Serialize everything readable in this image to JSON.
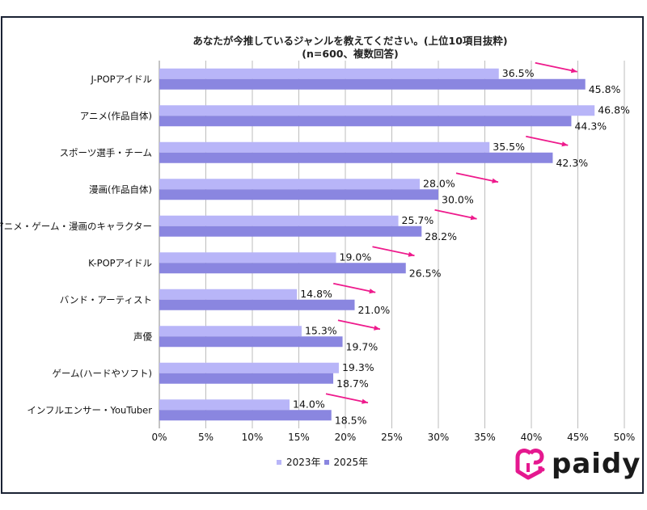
{
  "chart_data": {
    "type": "bar",
    "orientation": "horizontal",
    "title": "あなたが今推しているジャンルを教えてください。(上位10項目抜粋)",
    "subtitle": "(n=600、複数回答)",
    "categories": [
      "J-POPアイドル",
      "アニメ(作品自体)",
      "スポーツ選手・チーム",
      "漫画(作品自体)",
      "アニメ・ゲーム・漫画のキャラクター",
      "K-POPアイドル",
      "バンド・アーティスト",
      "声優",
      "ゲーム(ハードやソフト)",
      "インフルエンサー・YouTuber"
    ],
    "series": [
      {
        "name": "2023年",
        "color": "#b8b5f8",
        "values": [
          36.5,
          46.8,
          35.5,
          28.0,
          25.7,
          19.0,
          14.8,
          15.3,
          19.3,
          14.0
        ],
        "labels": [
          "36.5%",
          "46.8%",
          "35.5%",
          "28.0%",
          "25.7%",
          "19.0%",
          "14.8%",
          "15.3%",
          "19.3%",
          "14.0%"
        ]
      },
      {
        "name": "2025年",
        "color": "#8a86e0",
        "values": [
          45.8,
          44.3,
          42.3,
          30.0,
          28.2,
          26.5,
          21.0,
          19.7,
          18.7,
          18.5
        ],
        "labels": [
          "45.8%",
          "44.3%",
          "42.3%",
          "30.0%",
          "28.2%",
          "26.5%",
          "21.0%",
          "19.7%",
          "18.7%",
          "18.5%"
        ]
      }
    ],
    "xlim": [
      0,
      50
    ],
    "xticks": [
      "0%",
      "5%",
      "10%",
      "15%",
      "20%",
      "25%",
      "30%",
      "35%",
      "40%",
      "45%",
      "50%"
    ],
    "grid": true,
    "legend_position": "bottom",
    "arrow_color": "#ee1a8c"
  },
  "logo": {
    "text": "paidy",
    "color": "#e5188f"
  }
}
